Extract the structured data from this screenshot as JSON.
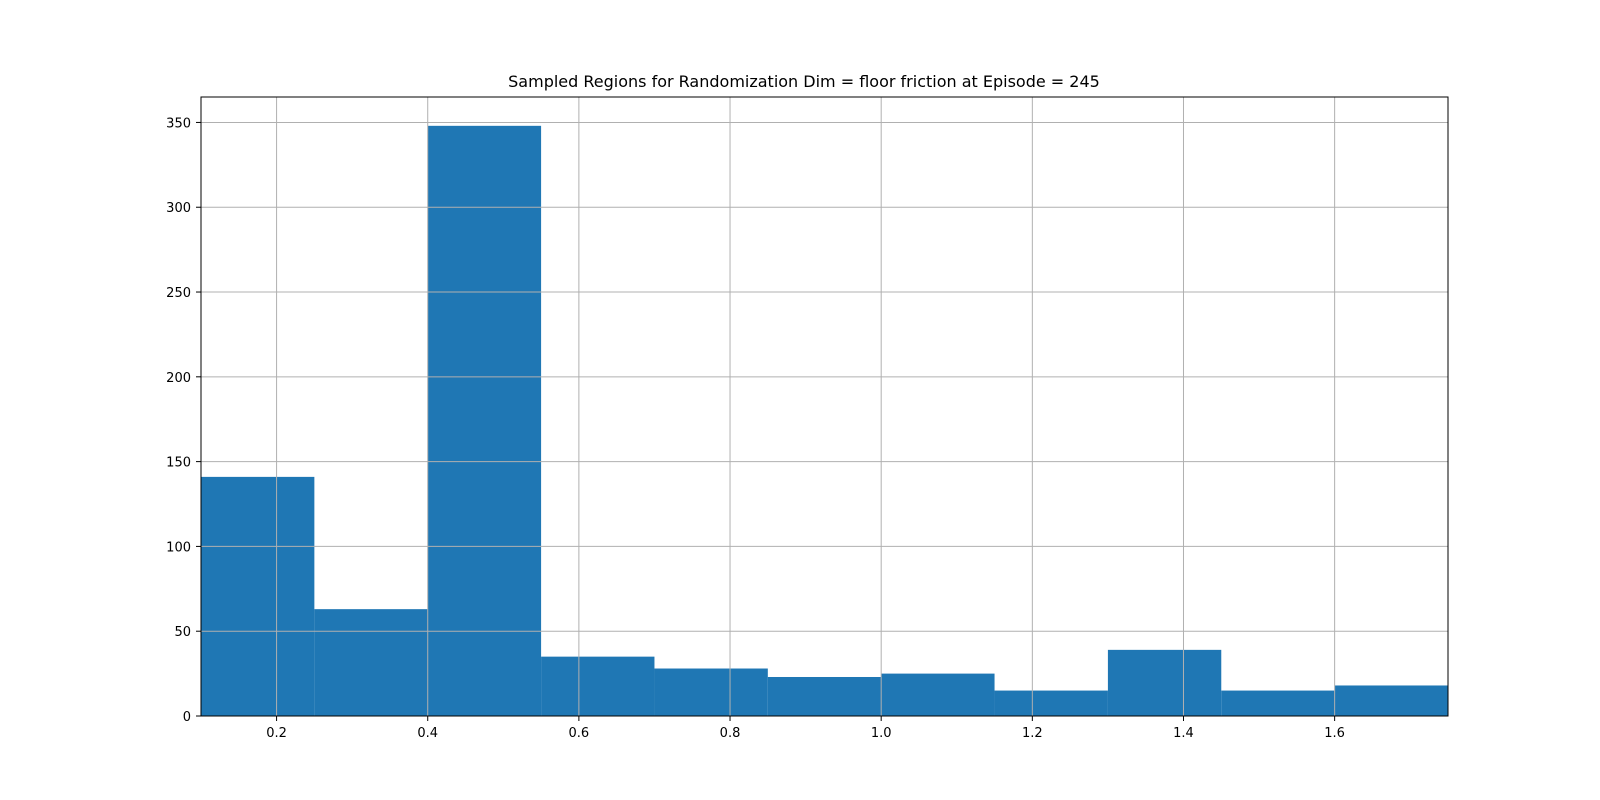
{
  "colors": {
    "bar": "#1f77b4",
    "grid": "#b0b0b0",
    "axis": "#000000",
    "background": "#ffffff"
  },
  "chart_data": {
    "type": "bar",
    "title": "Sampled Regions for Randomization Dim = floor friction at Episode = 245",
    "xlabel": "",
    "ylabel": "",
    "bin_edges": [
      0.1,
      0.25,
      0.4,
      0.55,
      0.7,
      0.85,
      1.0,
      1.15,
      1.3,
      1.45,
      1.6,
      1.75
    ],
    "values": [
      141,
      63,
      348,
      35,
      28,
      23,
      25,
      15,
      39,
      15,
      18
    ],
    "xlim": [
      0.1,
      1.75
    ],
    "ylim": [
      0,
      365
    ],
    "xticks": [
      0.2,
      0.4,
      0.6,
      0.8,
      1.0,
      1.2,
      1.4,
      1.6
    ],
    "xtick_labels": [
      "0.2",
      "0.4",
      "0.6",
      "0.8",
      "1.0",
      "1.2",
      "1.4",
      "1.6"
    ],
    "yticks": [
      0,
      50,
      100,
      150,
      200,
      250,
      300,
      350
    ],
    "ytick_labels": [
      "0",
      "50",
      "100",
      "150",
      "200",
      "250",
      "300",
      "350"
    ],
    "grid": true,
    "legend": null
  }
}
